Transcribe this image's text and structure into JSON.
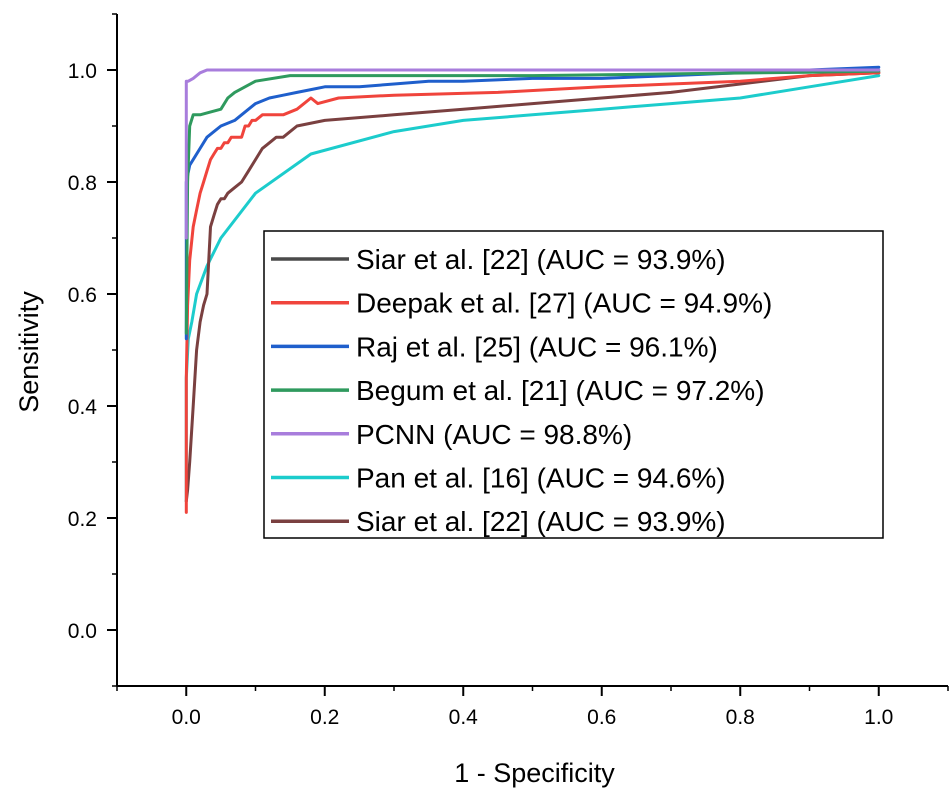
{
  "chart_data": {
    "type": "line",
    "xlabel": "1 - Specificity",
    "ylabel": "Sensitivity",
    "xlim": [
      -0.1,
      1.1
    ],
    "ylim": [
      -0.1,
      1.1
    ],
    "x_ticks": [
      "0.0",
      "0.2",
      "0.4",
      "0.6",
      "0.8",
      "1.0"
    ],
    "y_ticks": [
      "0.0",
      "0.2",
      "0.4",
      "0.6",
      "0.8",
      "1.0"
    ],
    "grid": false,
    "legend_position": "center-right",
    "series": [
      {
        "name": "Siar et al. [22] (AUC = 93.9%)",
        "color": "#4a4a4a",
        "show_line": false,
        "x": [],
        "y": []
      },
      {
        "name": "Deepak et al. [27] (AUC = 94.9%)",
        "color": "#f0443c",
        "x": [
          0.0,
          0.0,
          0.002,
          0.005,
          0.01,
          0.015,
          0.02,
          0.025,
          0.03,
          0.035,
          0.04,
          0.045,
          0.05,
          0.055,
          0.06,
          0.065,
          0.07,
          0.08,
          0.085,
          0.09,
          0.095,
          0.1,
          0.11,
          0.12,
          0.14,
          0.16,
          0.17,
          0.18,
          0.19,
          0.22,
          0.3,
          0.45,
          0.6,
          0.7,
          0.8,
          0.9,
          1.0
        ],
        "y": [
          0.21,
          0.45,
          0.58,
          0.66,
          0.72,
          0.75,
          0.78,
          0.8,
          0.82,
          0.84,
          0.85,
          0.86,
          0.86,
          0.87,
          0.87,
          0.88,
          0.88,
          0.88,
          0.9,
          0.9,
          0.91,
          0.91,
          0.92,
          0.92,
          0.92,
          0.93,
          0.94,
          0.95,
          0.94,
          0.95,
          0.955,
          0.96,
          0.97,
          0.975,
          0.98,
          0.99,
          0.995
        ]
      },
      {
        "name": "Raj et al. [25] (AUC = 96.1%)",
        "color": "#1f5fcc",
        "x": [
          0.0,
          0.0,
          0.005,
          0.01,
          0.02,
          0.03,
          0.05,
          0.07,
          0.08,
          0.1,
          0.12,
          0.14,
          0.16,
          0.18,
          0.2,
          0.25,
          0.3,
          0.35,
          0.4,
          0.5,
          0.6,
          0.7,
          0.8,
          0.9,
          1.0
        ],
        "y": [
          0.52,
          0.8,
          0.83,
          0.84,
          0.86,
          0.88,
          0.9,
          0.91,
          0.92,
          0.94,
          0.95,
          0.955,
          0.96,
          0.965,
          0.97,
          0.97,
          0.975,
          0.98,
          0.98,
          0.985,
          0.985,
          0.99,
          0.995,
          1.0,
          1.005
        ]
      },
      {
        "name": "Begum et al. [21] (AUC = 97.2%)",
        "color": "#2f9a5e",
        "x": [
          0.0,
          0.002,
          0.005,
          0.01,
          0.02,
          0.05,
          0.06,
          0.07,
          0.1,
          0.15,
          0.2,
          0.3,
          0.5,
          0.7,
          0.9,
          1.0
        ],
        "y": [
          0.53,
          0.8,
          0.9,
          0.92,
          0.92,
          0.93,
          0.95,
          0.96,
          0.98,
          0.99,
          0.99,
          0.99,
          0.99,
          0.993,
          0.996,
          0.998
        ]
      },
      {
        "name": "PCNN (AUC = 98.8%)",
        "color": "#a87ddc",
        "x": [
          0.0,
          0.0,
          0.003,
          0.01,
          0.02,
          0.03,
          0.1,
          0.3,
          0.5,
          0.7,
          0.9,
          1.0
        ],
        "y": [
          0.7,
          0.98,
          0.98,
          0.985,
          0.995,
          1.0,
          1.0,
          1.0,
          1.0,
          1.0,
          1.0,
          1.0
        ]
      },
      {
        "name": "Pan et al. [16] (AUC = 94.6%)",
        "color": "#1ccccc",
        "x": [
          0.0,
          0.0,
          0.003,
          0.008,
          0.015,
          0.03,
          0.05,
          0.1,
          0.18,
          0.3,
          0.4,
          0.5,
          0.6,
          0.7,
          0.8,
          0.9,
          1.0
        ],
        "y": [
          0.23,
          0.45,
          0.52,
          0.55,
          0.6,
          0.65,
          0.7,
          0.78,
          0.85,
          0.89,
          0.91,
          0.92,
          0.93,
          0.94,
          0.95,
          0.97,
          0.99
        ]
      },
      {
        "name": "Siar et al. [22] (AUC = 93.9%)",
        "color": "#7a4040",
        "x": [
          0.0,
          0.002,
          0.005,
          0.01,
          0.015,
          0.02,
          0.025,
          0.03,
          0.035,
          0.04,
          0.045,
          0.05,
          0.055,
          0.06,
          0.07,
          0.08,
          0.09,
          0.1,
          0.11,
          0.12,
          0.13,
          0.14,
          0.16,
          0.2,
          0.3,
          0.4,
          0.5,
          0.6,
          0.7,
          0.8,
          0.9,
          1.0
        ],
        "y": [
          0.23,
          0.25,
          0.3,
          0.4,
          0.5,
          0.55,
          0.58,
          0.6,
          0.72,
          0.74,
          0.76,
          0.77,
          0.77,
          0.78,
          0.79,
          0.8,
          0.82,
          0.84,
          0.86,
          0.87,
          0.88,
          0.88,
          0.9,
          0.91,
          0.92,
          0.93,
          0.94,
          0.95,
          0.96,
          0.975,
          0.99,
          0.995
        ]
      }
    ]
  }
}
